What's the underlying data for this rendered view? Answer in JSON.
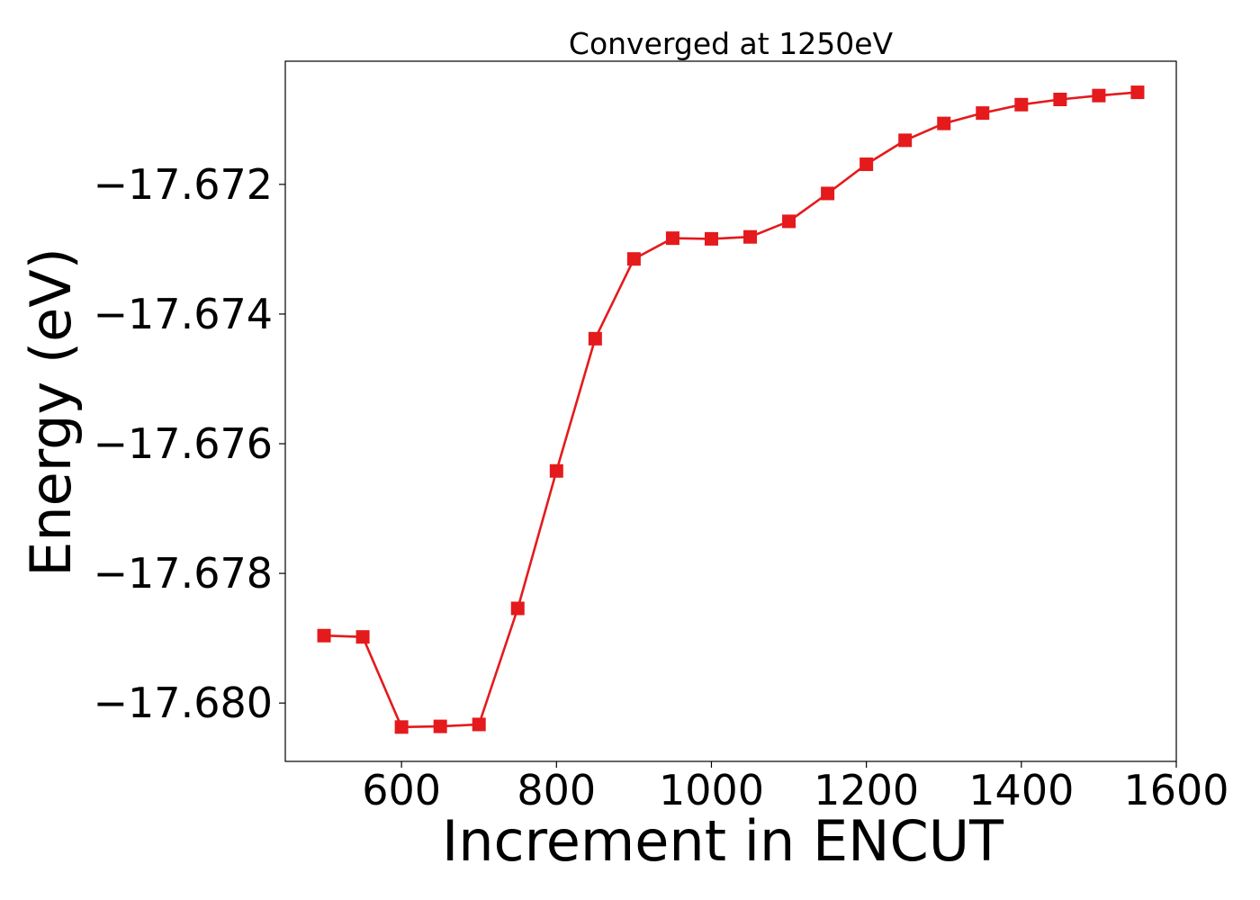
{
  "chart_data": {
    "type": "line",
    "title": "Converged at 1250eV",
    "xlabel": "Increment in ENCUT",
    "ylabel": "Energy (eV)",
    "xlim": [
      450,
      1600
    ],
    "ylim": [
      -17.6809,
      -17.6701
    ],
    "xticks": [
      600,
      800,
      1000,
      1200,
      1400,
      1600
    ],
    "xtick_labels": [
      "600",
      "800",
      "1000",
      "1200",
      "1400",
      "1600"
    ],
    "yticks": [
      -17.672,
      -17.674,
      -17.676,
      -17.678,
      -17.68
    ],
    "ytick_labels": [
      "−17.672",
      "−17.674",
      "−17.676",
      "−17.678",
      "−17.680"
    ],
    "grid": false,
    "series": [
      {
        "marker": "square",
        "color": "#e41a1c",
        "x": [
          500,
          550,
          600,
          650,
          700,
          750,
          800,
          850,
          900,
          950,
          1000,
          1050,
          1100,
          1150,
          1200,
          1250,
          1300,
          1350,
          1400,
          1450,
          1500,
          1550
        ],
        "y": [
          -17.67896,
          -17.67898,
          -17.68037,
          -17.68036,
          -17.68033,
          -17.67854,
          -17.67642,
          -17.67438,
          -17.67315,
          -17.67283,
          -17.67284,
          -17.67281,
          -17.67257,
          -17.67214,
          -17.67169,
          -17.67132,
          -17.67106,
          -17.6709,
          -17.67077,
          -17.67069,
          -17.67063,
          -17.67058
        ]
      }
    ]
  }
}
